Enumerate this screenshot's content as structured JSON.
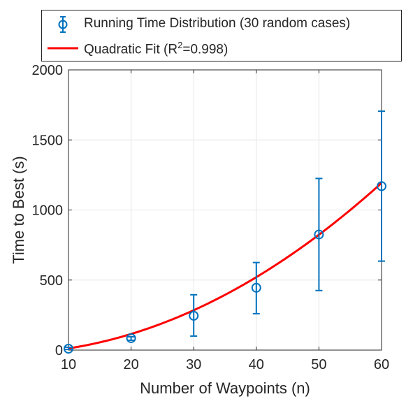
{
  "chart_data": {
    "type": "errorbar+line",
    "title": "",
    "xlabel": "Number of Waypoints (n)",
    "ylabel": "Time to Best (s)",
    "xlim": [
      10,
      60
    ],
    "ylim": [
      0,
      2000
    ],
    "xticks": [
      "10",
      "20",
      "30",
      "40",
      "50",
      "60"
    ],
    "yticks": [
      "0",
      "500",
      "1000",
      "1500",
      "2000"
    ],
    "grid": true,
    "legend_position": "top",
    "series": [
      {
        "name": "Running Time Distribution (30 random cases)",
        "kind": "errorbar",
        "color": "#0072BD",
        "x": [
          10,
          20,
          30,
          40,
          50,
          60
        ],
        "y": [
          10,
          85,
          245,
          445,
          825,
          1170
        ],
        "lower": [
          5,
          70,
          100,
          260,
          425,
          635
        ],
        "upper": [
          20,
          95,
          395,
          625,
          1225,
          1705
        ]
      },
      {
        "name": "Quadratic Fit",
        "name_suffix_base": "(R",
        "name_suffix_sup": "2",
        "name_suffix_rest": "=0.998)",
        "kind": "line",
        "color": "#FF0000",
        "fit": {
          "a": 0.3329,
          "b": 0.3114,
          "c": -24.4
        }
      }
    ]
  }
}
